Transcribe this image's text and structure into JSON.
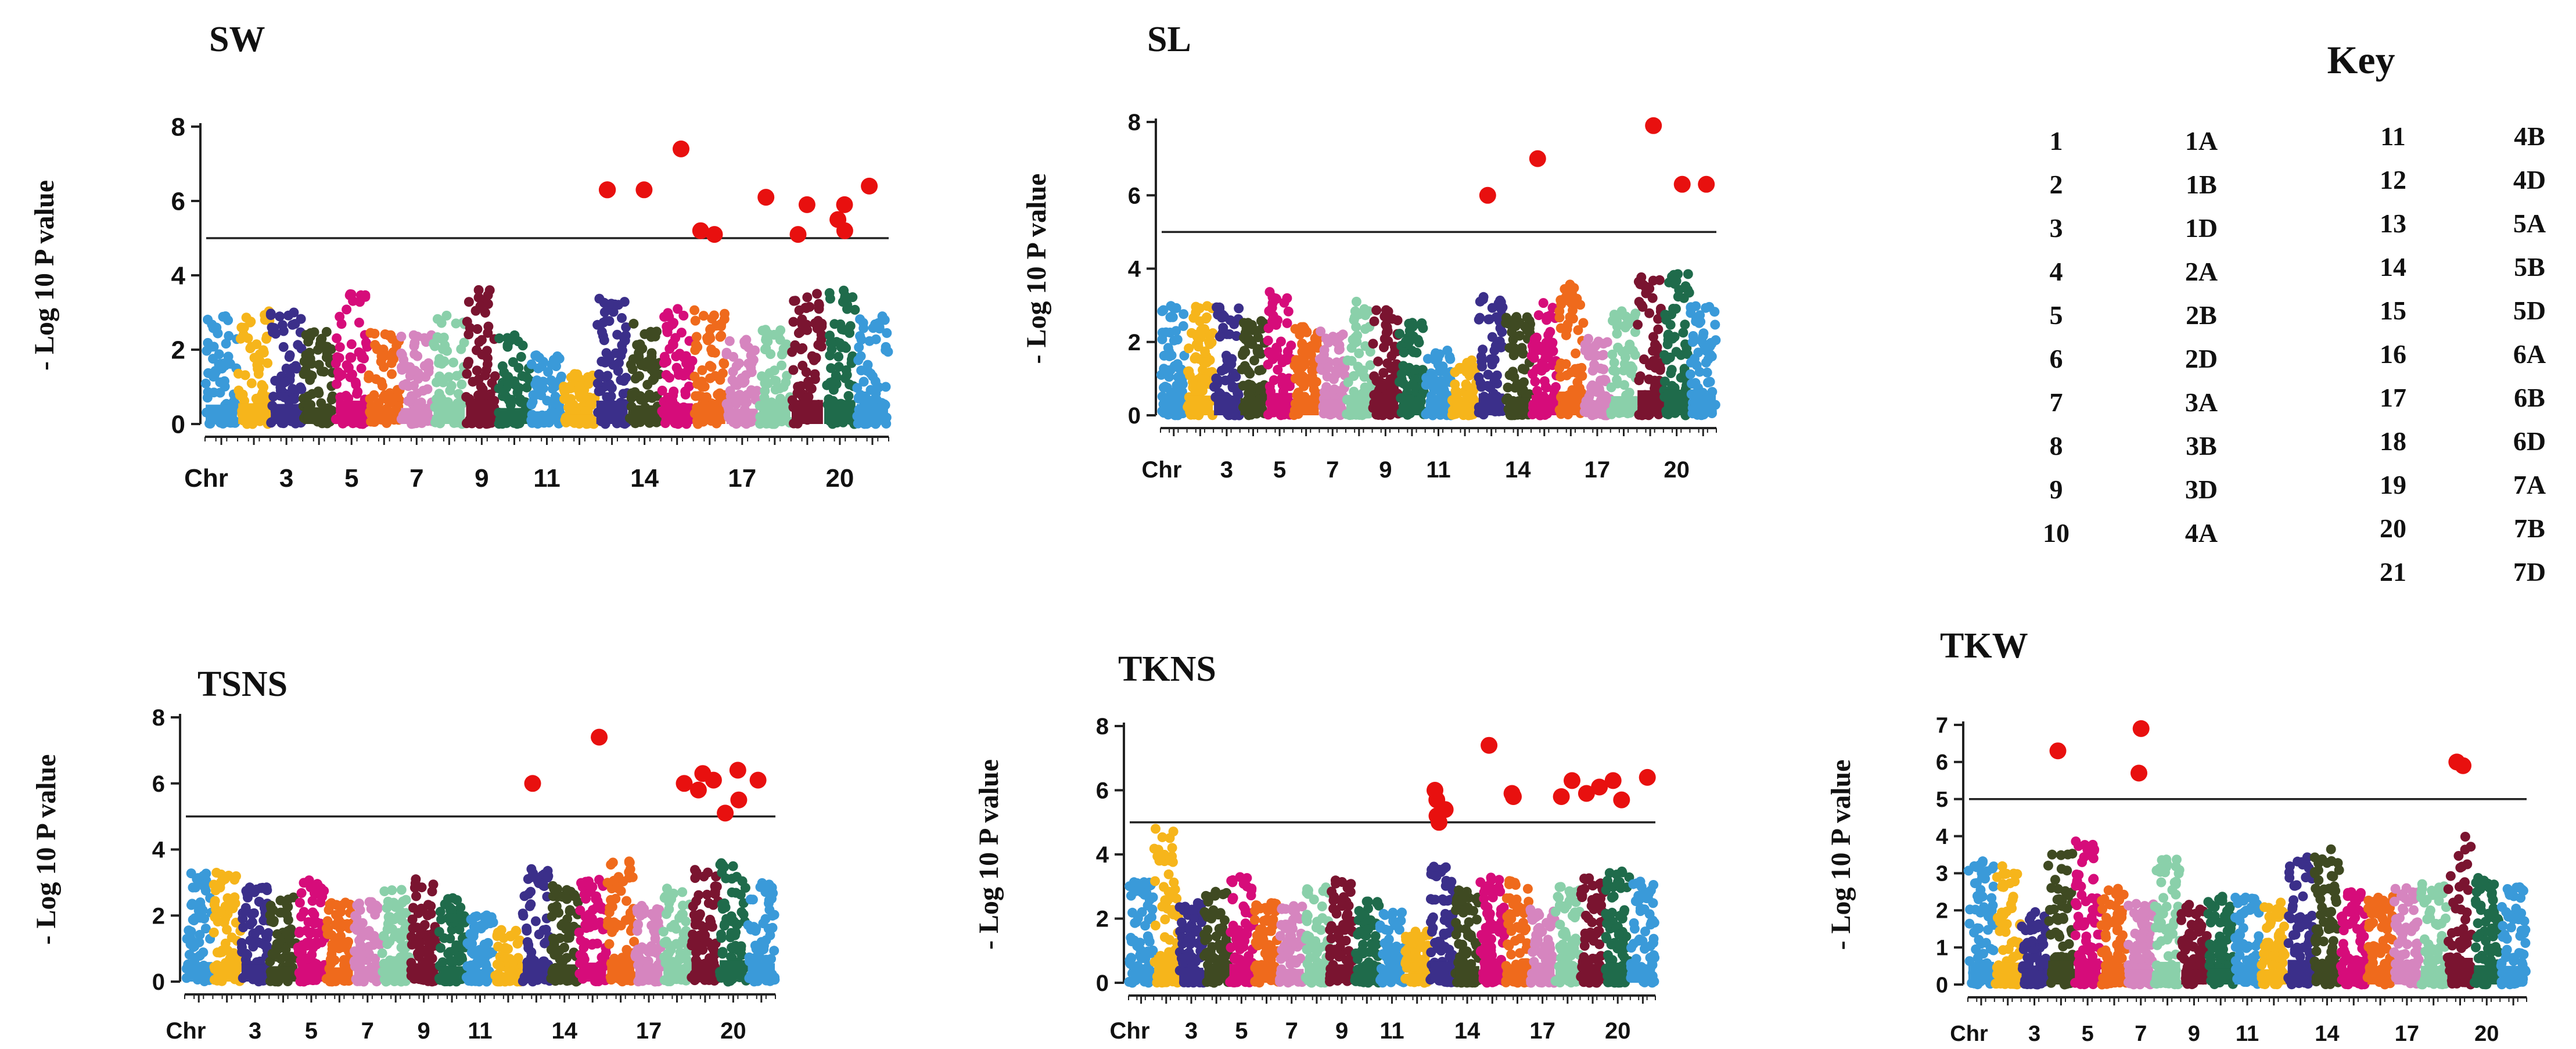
{
  "colors": {
    "chromosomes": [
      "#3a9ad9",
      "#f6b51b",
      "#3b2f8a",
      "#3f4a22",
      "#d60c7a",
      "#ef6a1c",
      "#d685bf",
      "#8ad0aa",
      "#7a1430",
      "#1f6b4b",
      "#3a9ad9",
      "#f6b51b",
      "#3b2f8a",
      "#3f4a22",
      "#d60c7a",
      "#ef6a1c",
      "#d685bf",
      "#8ad0aa",
      "#7a1430",
      "#1f6b4b",
      "#3a9ad9"
    ],
    "significant": "#e8100f",
    "threshold_line": "#222222"
  },
  "key": {
    "title": "Key",
    "entries": [
      {
        "num": "1",
        "chr": "1A"
      },
      {
        "num": "2",
        "chr": "1B"
      },
      {
        "num": "3",
        "chr": "1D"
      },
      {
        "num": "4",
        "chr": "2A"
      },
      {
        "num": "5",
        "chr": "2B"
      },
      {
        "num": "6",
        "chr": "2D"
      },
      {
        "num": "7",
        "chr": "3A"
      },
      {
        "num": "8",
        "chr": "3B"
      },
      {
        "num": "9",
        "chr": "3D"
      },
      {
        "num": "10",
        "chr": "4A"
      },
      {
        "num": "11",
        "chr": "4B"
      },
      {
        "num": "12",
        "chr": "4D"
      },
      {
        "num": "13",
        "chr": "5A"
      },
      {
        "num": "14",
        "chr": "5B"
      },
      {
        "num": "15",
        "chr": "5D"
      },
      {
        "num": "16",
        "chr": "6A"
      },
      {
        "num": "17",
        "chr": "6B"
      },
      {
        "num": "18",
        "chr": "6D"
      },
      {
        "num": "19",
        "chr": "7A"
      },
      {
        "num": "20",
        "chr": "7B"
      },
      {
        "num": "21",
        "chr": "7D"
      }
    ]
  },
  "chart_data": [
    {
      "type": "scatter",
      "title": "SW",
      "ylabel": "- Log 10 P value",
      "xlabel": "Chr",
      "x_tick_labels": [
        "Chr",
        "3",
        "5",
        "7",
        "9",
        "11",
        "14",
        "17",
        "20"
      ],
      "x_tick_chromosomes": [
        1,
        3,
        5,
        7,
        9,
        11,
        14,
        17,
        20
      ],
      "yticks": [
        0,
        2,
        4,
        6,
        8
      ],
      "ylim": [
        0,
        8
      ],
      "threshold": 5,
      "chromosome_max": [
        2.9,
        3.1,
        3.0,
        2.5,
        3.5,
        2.5,
        2.4,
        3.1,
        3.7,
        2.4,
        1.9,
        1.4,
        3.5,
        2.8,
        3.1,
        3.1,
        2.3,
        2.6,
        3.6,
        3.6,
        3.0
      ],
      "significant_points": [
        {
          "chr": 13,
          "value": 6.3
        },
        {
          "chr": 13,
          "value": 6.3
        },
        {
          "chr": 14,
          "value": 6.3
        },
        {
          "chr": 15,
          "value": 7.4
        },
        {
          "chr": 16,
          "value": 5.2
        },
        {
          "chr": 16,
          "value": 5.1
        },
        {
          "chr": 18,
          "value": 6.1
        },
        {
          "chr": 19,
          "value": 5.1
        },
        {
          "chr": 19,
          "value": 5.9
        },
        {
          "chr": 20,
          "value": 5.9
        },
        {
          "chr": 20,
          "value": 5.2
        },
        {
          "chr": 20,
          "value": 5.5
        },
        {
          "chr": 21,
          "value": 6.4
        }
      ]
    },
    {
      "type": "scatter",
      "title": "SL",
      "ylabel": "- Log 10 P value",
      "xlabel": "Chr",
      "x_tick_labels": [
        "Chr",
        "3",
        "5",
        "7",
        "9",
        "11",
        "14",
        "17",
        "20"
      ],
      "x_tick_chromosomes": [
        1,
        3,
        5,
        7,
        9,
        11,
        14,
        17,
        20
      ],
      "yticks": [
        0,
        2,
        4,
        6,
        8
      ],
      "ylim": [
        0,
        8
      ],
      "threshold": 5,
      "chromosome_max": [
        3.0,
        3.0,
        3.0,
        2.6,
        3.4,
        2.5,
        2.4,
        3.1,
        3.1,
        2.6,
        1.8,
        1.5,
        3.3,
        2.7,
        3.1,
        3.6,
        2.1,
        2.9,
        3.8,
        3.9,
        3.0
      ],
      "significant_points": [
        {
          "chr": 13,
          "value": 6.0
        },
        {
          "chr": 15,
          "value": 7.0
        },
        {
          "chr": 19,
          "value": 7.9
        },
        {
          "chr": 20,
          "value": 6.3
        },
        {
          "chr": 21,
          "value": 6.3
        }
      ]
    },
    {
      "type": "scatter",
      "title": "TSNS",
      "ylabel": "- Log 10 P value",
      "xlabel": "Chr",
      "x_tick_labels": [
        "Chr",
        "3",
        "5",
        "7",
        "9",
        "11",
        "14",
        "17",
        "20"
      ],
      "x_tick_chromosomes": [
        1,
        3,
        5,
        7,
        9,
        11,
        14,
        17,
        20
      ],
      "yticks": [
        0,
        2,
        4,
        6,
        8
      ],
      "ylim": [
        0,
        8
      ],
      "threshold": 5,
      "chromosome_max": [
        3.3,
        3.3,
        2.9,
        2.6,
        3.1,
        2.4,
        2.5,
        2.8,
        3.1,
        2.6,
        2.1,
        1.6,
        3.5,
        2.9,
        3.2,
        3.7,
        2.3,
        2.9,
        3.4,
        3.6,
        3.1
      ],
      "significant_points": [
        {
          "chr": 13,
          "value": 6.0
        },
        {
          "chr": 15,
          "value": 7.4
        },
        {
          "chr": 18,
          "value": 6.0
        },
        {
          "chr": 19,
          "value": 6.1
        },
        {
          "chr": 19,
          "value": 6.3
        },
        {
          "chr": 19,
          "value": 5.8
        },
        {
          "chr": 20,
          "value": 6.4
        },
        {
          "chr": 20,
          "value": 5.5
        },
        {
          "chr": 20,
          "value": 5.1
        },
        {
          "chr": 21,
          "value": 6.1
        }
      ]
    },
    {
      "type": "scatter",
      "title": "TKNS",
      "ylabel": "- Log 10 P value",
      "xlabel": "Chr",
      "x_tick_labels": [
        "Chr",
        "3",
        "5",
        "7",
        "9",
        "11",
        "14",
        "17",
        "20"
      ],
      "x_tick_chromosomes": [
        1,
        3,
        5,
        7,
        9,
        11,
        14,
        17,
        20
      ],
      "yticks": [
        0,
        2,
        4,
        6,
        8
      ],
      "ylim": [
        0,
        8
      ],
      "threshold": 5,
      "chromosome_max": [
        3.2,
        4.8,
        2.6,
        2.9,
        3.3,
        2.5,
        2.4,
        3.0,
        3.2,
        2.6,
        2.2,
        1.6,
        3.7,
        2.9,
        3.3,
        3.2,
        2.3,
        3.0,
        3.3,
        3.5,
        3.2
      ],
      "significant_points": [
        {
          "chr": 13,
          "value": 5.0
        },
        {
          "chr": 13,
          "value": 5.4
        },
        {
          "chr": 13,
          "value": 5.2
        },
        {
          "chr": 13,
          "value": 5.7
        },
        {
          "chr": 13,
          "value": 6.0
        },
        {
          "chr": 15,
          "value": 7.4
        },
        {
          "chr": 16,
          "value": 5.9
        },
        {
          "chr": 16,
          "value": 5.8
        },
        {
          "chr": 18,
          "value": 6.3
        },
        {
          "chr": 18,
          "value": 5.8
        },
        {
          "chr": 19,
          "value": 6.1
        },
        {
          "chr": 19,
          "value": 5.9
        },
        {
          "chr": 20,
          "value": 6.3
        },
        {
          "chr": 20,
          "value": 5.7
        },
        {
          "chr": 21,
          "value": 6.4
        }
      ]
    },
    {
      "type": "scatter",
      "title": "TKW",
      "ylabel": "- Log 10 P value",
      "xlabel": "Chr",
      "x_tick_labels": [
        "Chr",
        "3",
        "5",
        "7",
        "9",
        "11",
        "14",
        "17",
        "20"
      ],
      "x_tick_chromosomes": [
        1,
        3,
        5,
        7,
        9,
        11,
        14,
        17,
        20
      ],
      "yticks": [
        0,
        1,
        2,
        3,
        4,
        5,
        6,
        7
      ],
      "ylim": [
        0,
        7
      ],
      "threshold": 5,
      "chromosome_max": [
        3.4,
        3.3,
        2.0,
        3.6,
        3.9,
        2.6,
        2.2,
        3.4,
        2.2,
        2.4,
        2.4,
        2.3,
        3.7,
        3.7,
        2.5,
        2.4,
        2.6,
        2.8,
        4.0,
        2.9,
        2.8
      ],
      "significant_points": [
        {
          "chr": 4,
          "value": 6.3
        },
        {
          "chr": 7,
          "value": 6.9
        },
        {
          "chr": 7,
          "value": 5.7
        },
        {
          "chr": 19,
          "value": 6.0
        },
        {
          "chr": 19,
          "value": 5.9
        }
      ]
    }
  ]
}
